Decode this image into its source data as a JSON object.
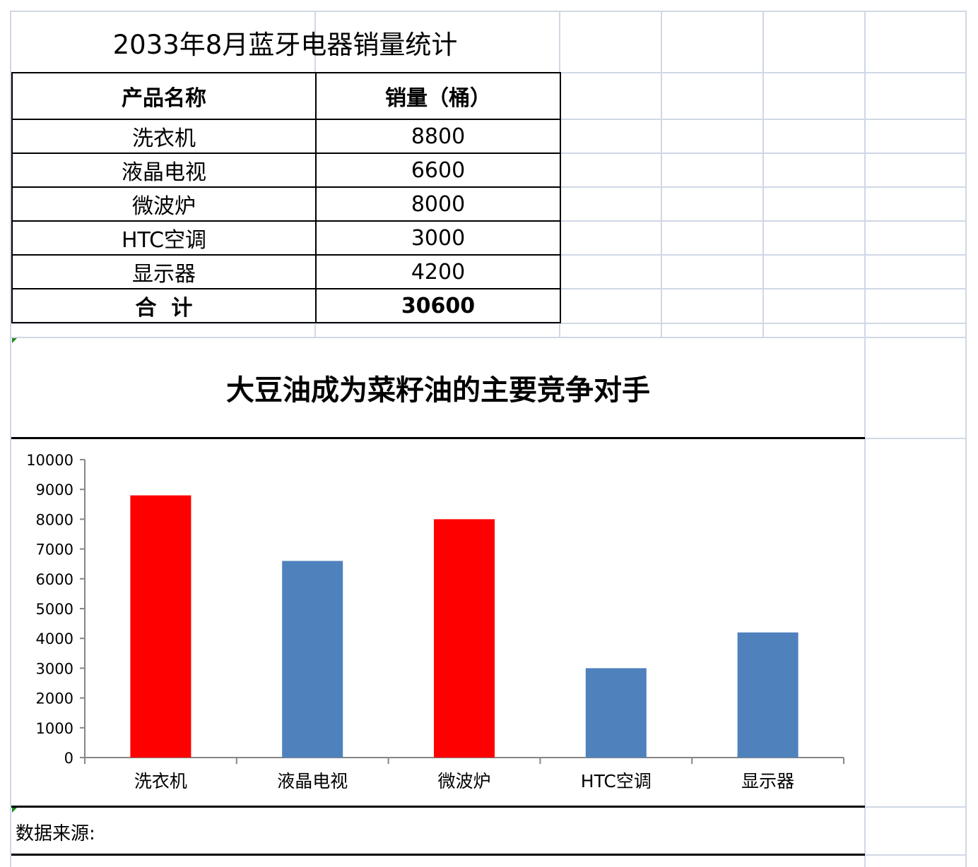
{
  "sheet_title": "2033年8月蓝牙电器销量统计",
  "table": {
    "headers": [
      "产品名称",
      "销量（桶）"
    ],
    "rows": [
      {
        "name": "洗衣机",
        "value": "8800"
      },
      {
        "name": "液晶电视",
        "value": "6600"
      },
      {
        "name": "微波炉",
        "value": "8000"
      },
      {
        "name": "HTC空调",
        "value": "3000"
      },
      {
        "name": "显示器",
        "value": "4200"
      }
    ],
    "total_label": "合  计",
    "total_value": "30600"
  },
  "chart_data": {
    "type": "bar",
    "title": "大豆油成为菜籽油的主要竞争对手",
    "categories": [
      "洗衣机",
      "液晶电视",
      "微波炉",
      "HTC空调",
      "显示器"
    ],
    "values": [
      8800,
      6600,
      8000,
      3000,
      4200
    ],
    "bar_colors": [
      "#ff0000",
      "#4f81bd",
      "#ff0000",
      "#4f81bd",
      "#4f81bd"
    ],
    "ylim": [
      0,
      10000
    ],
    "yticks": [
      0,
      1000,
      2000,
      3000,
      4000,
      5000,
      6000,
      7000,
      8000,
      9000,
      10000
    ],
    "xlabel": "",
    "ylabel": "",
    "grid": false,
    "legend": "none"
  },
  "source_label": "数据来源:"
}
